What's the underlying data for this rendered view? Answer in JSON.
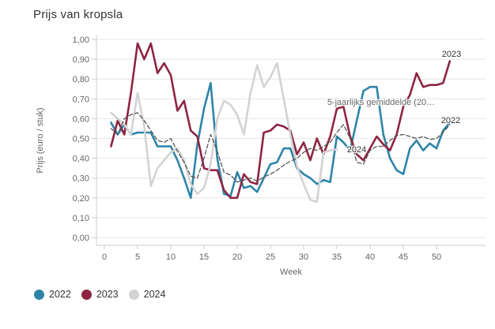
{
  "title": "Prijs van kropsla",
  "y_axis": {
    "title": "Prijs (euro / stuk)"
  },
  "x_axis": {
    "title": "Week"
  },
  "legend": {
    "items": [
      {
        "label": "2022",
        "color": "#2e84a8"
      },
      {
        "label": "2023",
        "color": "#8e2542"
      },
      {
        "label": "2024",
        "color": "#d3d3d6"
      }
    ]
  },
  "on_chart_labels": {
    "label_2023": "2023",
    "label_2022": "2022",
    "label_2024": "2024",
    "label_avg": "5-jaarlijks gemiddelde (20…"
  },
  "colors": {
    "series_2022": "#2e84a8",
    "series_2023": "#8e2542",
    "series_2024": "#d3d3d6",
    "series_avg": "#565656",
    "grid": "#e6e6e6",
    "axis_line": "#cccccc",
    "tick_text": "#666666",
    "title_text": "#333333"
  },
  "chart_data": {
    "type": "line",
    "title": "Prijs van kropsla",
    "xlabel": "Week",
    "ylabel": "Prijs (euro / stuk)",
    "xlim": [
      0,
      53
    ],
    "ylim": [
      0,
      1
    ],
    "y_tick_step": 0.1,
    "y_tick_decimal_separator": ",",
    "x_ticks": [
      0,
      5,
      10,
      15,
      20,
      25,
      30,
      35,
      40,
      45,
      50
    ],
    "grid": "horizontal",
    "legend_position": "bottom-left",
    "x_start_week": 1,
    "series": [
      {
        "name": "2022",
        "style": "solid",
        "color": "#2e84a8",
        "values": [
          0.58,
          0.52,
          0.57,
          0.52,
          0.53,
          0.53,
          0.53,
          0.46,
          0.46,
          0.46,
          0.39,
          0.3,
          0.2,
          0.47,
          0.65,
          0.78,
          0.4,
          0.22,
          0.21,
          0.33,
          0.25,
          0.26,
          0.23,
          0.3,
          0.37,
          0.38,
          0.45,
          0.45,
          0.35,
          0.32,
          0.3,
          0.27,
          0.29,
          0.28,
          0.51,
          0.48,
          0.44,
          0.59,
          0.74,
          0.76,
          0.76,
          0.52,
          0.4,
          0.34,
          0.32,
          0.45,
          0.49,
          0.44,
          0.475,
          0.45,
          0.54,
          0.58
        ]
      },
      {
        "name": "2023",
        "style": "solid",
        "color": "#8e2542",
        "values": [
          0.46,
          0.59,
          0.52,
          0.73,
          0.98,
          0.9,
          0.98,
          0.83,
          0.88,
          0.82,
          0.64,
          0.69,
          0.54,
          0.51,
          0.35,
          0.34,
          0.34,
          0.24,
          0.2,
          0.2,
          0.32,
          0.28,
          0.27,
          0.53,
          0.54,
          0.57,
          0.56,
          0.54,
          0.42,
          0.48,
          0.39,
          0.5,
          0.42,
          0.51,
          0.65,
          0.66,
          0.51,
          0.42,
          0.39,
          0.45,
          0.51,
          0.47,
          0.44,
          0.52,
          0.66,
          0.72,
          0.83,
          0.76,
          0.77,
          0.77,
          0.78,
          0.89
        ]
      },
      {
        "name": "2024",
        "style": "solid",
        "color": "#d3d3d6",
        "values": [
          0.63,
          0.6,
          0.57,
          0.52,
          0.73,
          0.56,
          0.26,
          0.35,
          0.39,
          0.43,
          0.45,
          0.39,
          0.27,
          0.22,
          0.25,
          0.37,
          0.6,
          0.69,
          0.67,
          0.62,
          0.52,
          0.73,
          0.87,
          0.76,
          0.81,
          0.88,
          0.7,
          0.52,
          0.36,
          0.27,
          0.19,
          0.18,
          0.43,
          0.44,
          0.445
        ]
      },
      {
        "name": "5-jaarlijks gemiddelde",
        "style": "dashed",
        "color": "#565656",
        "values": [
          0.55,
          0.52,
          0.6,
          0.62,
          0.63,
          0.59,
          0.54,
          0.49,
          0.48,
          0.5,
          0.435,
          0.38,
          0.31,
          0.3,
          0.4,
          0.52,
          0.435,
          0.33,
          0.315,
          0.28,
          0.29,
          0.3,
          0.285,
          0.305,
          0.32,
          0.34,
          0.365,
          0.385,
          0.4,
          0.43,
          0.45,
          0.44,
          0.46,
          0.48,
          0.53,
          0.57,
          0.5,
          0.38,
          0.37,
          0.44,
          0.46,
          0.46,
          0.49,
          0.515,
          0.52,
          0.51,
          0.5,
          0.51,
          0.495,
          0.5,
          0.53,
          0.57
        ]
      }
    ]
  }
}
